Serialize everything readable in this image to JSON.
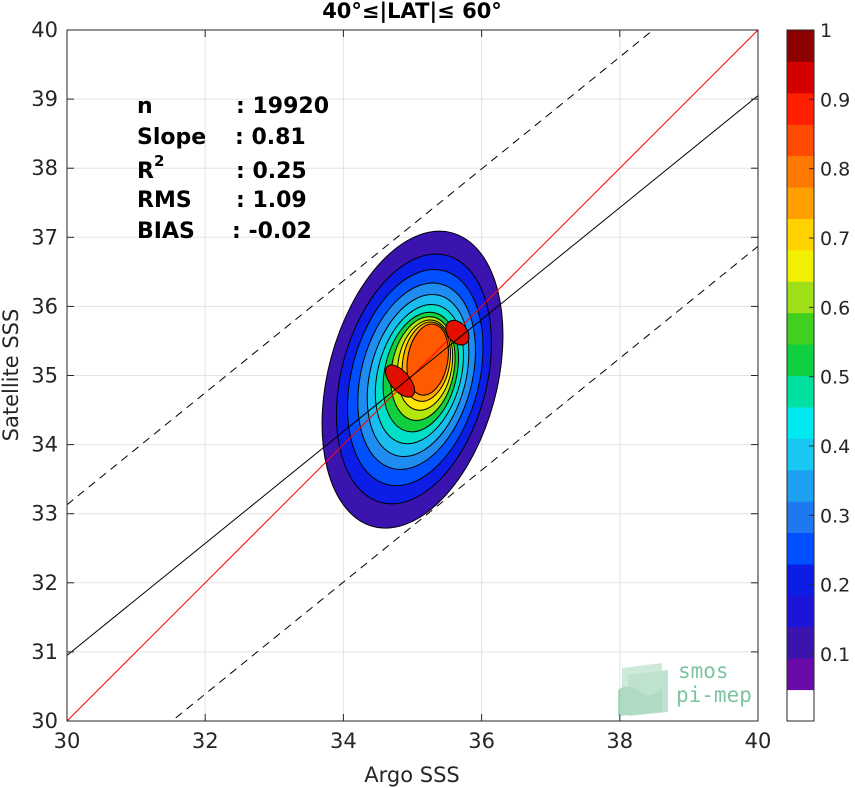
{
  "chart_data": {
    "type": "contour-density",
    "title": "40°≤|LAT|≤ 60°",
    "xlabel": "Argo SSS",
    "ylabel": "Satellite SSS",
    "xlim": [
      30,
      40
    ],
    "ylim": [
      30,
      40
    ],
    "xticks": [
      "30",
      "32",
      "34",
      "36",
      "38",
      "40"
    ],
    "yticks": [
      "30",
      "31",
      "32",
      "33",
      "34",
      "35",
      "36",
      "37",
      "38",
      "39",
      "40"
    ],
    "grid": true,
    "stats": [
      {
        "label": "n",
        "value": ": 19920"
      },
      {
        "label": "Slope",
        "value": ": 0.81"
      },
      {
        "label": "R",
        "sup": "2",
        "value": ": 0.25"
      },
      {
        "label": "RMS",
        "value": ": 1.09"
      },
      {
        "label": "BIAS",
        "value": ": -0.02"
      }
    ],
    "lines": {
      "identity": {
        "slope": 1,
        "intercept": 0,
        "color": "#ff0000"
      },
      "fit": {
        "slope": 0.81,
        "intercept": 6.65,
        "color": "#000000"
      },
      "fit_plus_2rms": {
        "slope": 0.81,
        "intercept": 8.83,
        "color": "#000000",
        "dash": true
      },
      "fit_minus_2rms": {
        "slope": 0.81,
        "intercept": 4.47,
        "color": "#000000",
        "dash": true
      }
    },
    "contours": [
      {
        "level": 0.05,
        "color": "#3b14b0",
        "cx": 35.0,
        "cy": 34.94,
        "rx": 1.22,
        "ry": 2.2,
        "rot": 60
      },
      {
        "level": 0.15,
        "color": "#0c1ee6",
        "cx": 35.02,
        "cy": 34.95,
        "rx": 1.05,
        "ry": 1.85,
        "rot": 60
      },
      {
        "level": 0.2,
        "color": "#0050ff",
        "cx": 35.04,
        "cy": 34.97,
        "rx": 0.92,
        "ry": 1.6,
        "rot": 60
      },
      {
        "level": 0.25,
        "color": "#1e8cf0",
        "cx": 35.06,
        "cy": 34.99,
        "rx": 0.8,
        "ry": 1.38,
        "rot": 60
      },
      {
        "level": 0.3,
        "color": "#19bdf0",
        "cx": 35.08,
        "cy": 35.0,
        "rx": 0.69,
        "ry": 1.2,
        "rot": 60
      },
      {
        "level": 0.4,
        "color": "#00e0c8",
        "cx": 35.1,
        "cy": 35.02,
        "rx": 0.6,
        "ry": 1.03,
        "rot": 60
      },
      {
        "level": 0.5,
        "color": "#10d040",
        "cx": 35.12,
        "cy": 35.05,
        "rx": 0.52,
        "ry": 0.88,
        "rot": 58
      },
      {
        "level": 0.6,
        "color": "#b4e60a",
        "cx": 35.15,
        "cy": 35.1,
        "rx": 0.45,
        "ry": 0.76,
        "rot": 56
      },
      {
        "level": 0.65,
        "color": "#ffe600",
        "cx": 35.18,
        "cy": 35.15,
        "rx": 0.39,
        "ry": 0.66,
        "rot": 55
      },
      {
        "level": 0.7,
        "color": "#ffa800",
        "cx": 35.2,
        "cy": 35.2,
        "rx": 0.34,
        "ry": 0.58,
        "rot": 55
      },
      {
        "level": 0.8,
        "color": "#ff5a00",
        "cx": 35.22,
        "cy": 35.23,
        "rx": 0.29,
        "ry": 0.52,
        "rot": 55
      },
      {
        "level": 0.9,
        "color": "#e01000",
        "cx": 34.82,
        "cy": 34.92,
        "rx": 0.14,
        "ry": 0.28,
        "rot": 5
      },
      {
        "level": 0.9,
        "color": "#e01000",
        "cx": 35.65,
        "cy": 35.62,
        "rx": 0.14,
        "ry": 0.2,
        "rot": 5
      }
    ],
    "colorbar": {
      "ticks": [
        "0.1",
        "0.2",
        "0.3",
        "0.4",
        "0.5",
        "0.6",
        "0.7",
        "0.8",
        "0.9",
        "1"
      ],
      "range": [
        0,
        1
      ],
      "colors": [
        "#ffffff",
        "#6a0aa8",
        "#3b14b0",
        "#1e14d8",
        "#0c1ee6",
        "#0050ff",
        "#1e78f0",
        "#1ea0f0",
        "#19c8f0",
        "#00e8f0",
        "#00e0a0",
        "#10d040",
        "#40d020",
        "#a0e018",
        "#f0f000",
        "#ffd200",
        "#ffa000",
        "#ff7800",
        "#ff4a00",
        "#ff1e00",
        "#d40000",
        "#8c0000"
      ]
    },
    "logo": {
      "line1": "smos",
      "line2": "pi-mep"
    }
  }
}
